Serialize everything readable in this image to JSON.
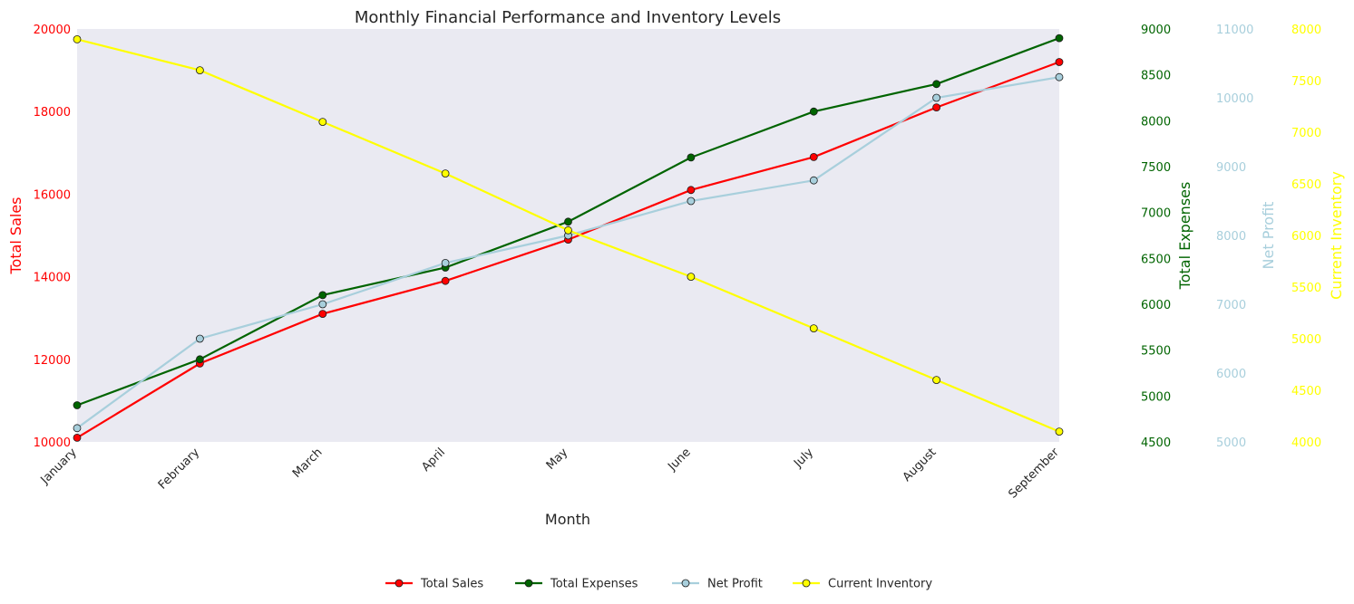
{
  "chart_data": {
    "type": "line",
    "title": "Monthly Financial Performance and Inventory Levels",
    "xlabel": "Month",
    "categories": [
      "January",
      "February",
      "March",
      "April",
      "May",
      "June",
      "July",
      "August",
      "September"
    ],
    "axes": [
      {
        "id": "sales",
        "label": "Total Sales",
        "color": "#ff0000",
        "ylim": [
          10000,
          20000
        ],
        "ticks": [
          10000,
          12000,
          14000,
          16000,
          18000,
          20000
        ],
        "position": "left"
      },
      {
        "id": "expenses",
        "label": "Total Expenses",
        "color": "#006400",
        "ylim": [
          4500,
          9000
        ],
        "ticks": [
          4500,
          5000,
          5500,
          6000,
          6500,
          7000,
          7500,
          8000,
          8500,
          9000
        ],
        "position": "right"
      },
      {
        "id": "profit",
        "label": "Net Profit",
        "color": "#a8cfdc",
        "ylim": [
          5000,
          11000
        ],
        "ticks": [
          5000,
          6000,
          7000,
          8000,
          9000,
          10000,
          11000
        ],
        "position": "right"
      },
      {
        "id": "inventory",
        "label": "Current Inventory",
        "color": "#ffff00",
        "ylim": [
          4000,
          8000
        ],
        "ticks": [
          4000,
          4500,
          5000,
          5500,
          6000,
          6500,
          7000,
          7500,
          8000
        ],
        "position": "right"
      }
    ],
    "series": [
      {
        "name": "Total Sales",
        "axis": "sales",
        "color": "#ff0000",
        "values": [
          10100,
          11900,
          13100,
          13900,
          14900,
          16100,
          16900,
          18100,
          19200
        ]
      },
      {
        "name": "Total Expenses",
        "axis": "expenses",
        "color": "#006400",
        "values": [
          4900,
          5400,
          6100,
          6400,
          6900,
          7600,
          8100,
          8400,
          8900
        ]
      },
      {
        "name": "Net Profit",
        "axis": "profit",
        "color": "#a8cfdc",
        "values": [
          5200,
          6500,
          7000,
          7600,
          8000,
          8500,
          8800,
          10000,
          10300
        ]
      },
      {
        "name": "Current Inventory",
        "axis": "inventory",
        "color": "#ffff00",
        "values": [
          7900,
          7600,
          7100,
          6600,
          6050,
          5600,
          5100,
          4600,
          4100
        ]
      }
    ],
    "legend_position": "bottom-center",
    "grid": false
  }
}
